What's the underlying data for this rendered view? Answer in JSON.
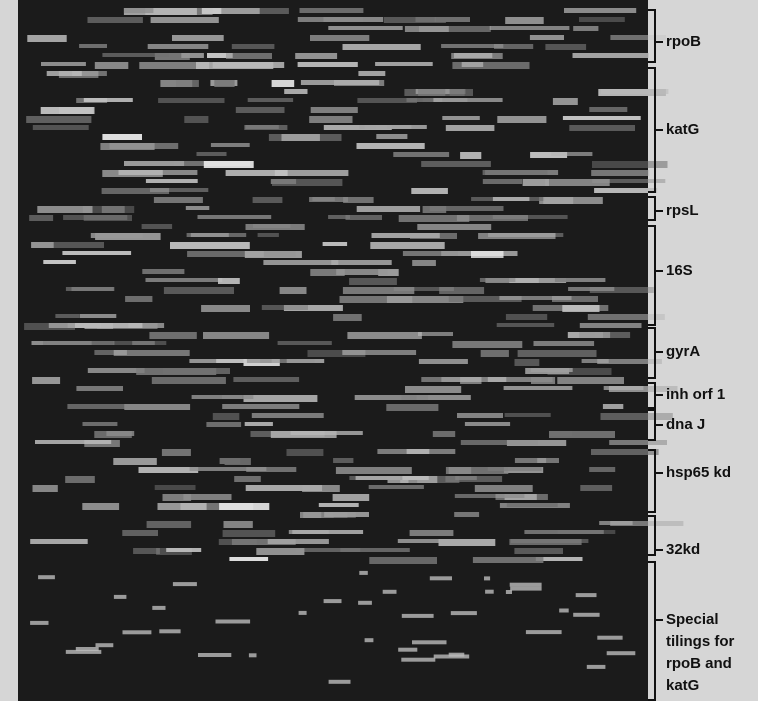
{
  "figure": {
    "labels": [
      {
        "lines": [
          "rpoB"
        ]
      },
      {
        "lines": [
          "katG"
        ]
      },
      {
        "lines": [
          "rpsL"
        ]
      },
      {
        "lines": [
          "16S"
        ]
      },
      {
        "lines": [
          "gyrA"
        ]
      },
      {
        "lines": [
          "inh orf 1"
        ]
      },
      {
        "lines": [
          "dna J"
        ]
      },
      {
        "lines": [
          "hsp65 kd"
        ]
      },
      {
        "lines": [
          "32kd"
        ]
      },
      {
        "lines": [
          "Special",
          "tilings for",
          "rpoB and",
          "katG"
        ]
      }
    ]
  }
}
